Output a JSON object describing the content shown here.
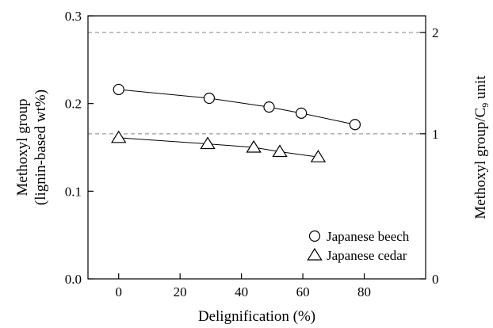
{
  "chart_data": {
    "type": "line",
    "xlabel": "Delignification (%)",
    "ylabel_left_line1": "Methoxyl group",
    "ylabel_left_line2": "(lignin-based wt%)",
    "ylabel_right": "Methoxyl group/C",
    "ylabel_right_subscript": "9",
    "ylabel_right_suffix": " unit",
    "xlim": [
      -10,
      100
    ],
    "ylim": [
      0.0,
      0.3
    ],
    "x_ticks": [
      0,
      20,
      40,
      60,
      80
    ],
    "x_tick_labels": [
      "0",
      "20",
      "40",
      "60",
      "80"
    ],
    "y_ticks": [
      0.0,
      0.1,
      0.2,
      0.3
    ],
    "y_tick_labels": [
      "0.0",
      "0.1",
      "0.2",
      "0.3"
    ],
    "right_axis": {
      "ticks": [
        0,
        1,
        2
      ],
      "tick_labels": [
        "0",
        "1",
        "2"
      ],
      "left_equivalent": [
        0.0,
        0.1655,
        0.281
      ]
    },
    "reference_lines_left_units": [
      0.1655,
      0.281
    ],
    "grid": false,
    "legend_position": "bottom-right",
    "series": [
      {
        "name": "Japanese beech",
        "marker": "circle",
        "x": [
          0,
          29.5,
          49,
          59.5,
          77
        ],
        "y": [
          0.216,
          0.206,
          0.196,
          0.189,
          0.176
        ]
      },
      {
        "name": "Japanese cedar",
        "marker": "triangle",
        "x": [
          0,
          29,
          44,
          52.5,
          65
        ],
        "y": [
          0.161,
          0.154,
          0.15,
          0.145,
          0.139
        ]
      }
    ]
  }
}
